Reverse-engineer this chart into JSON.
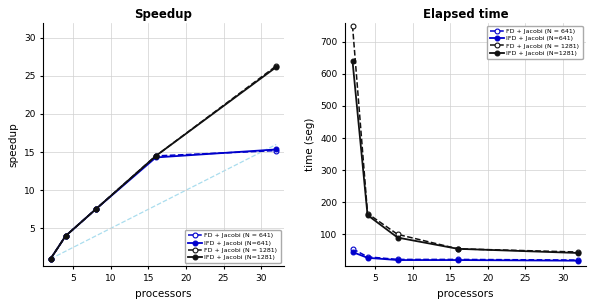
{
  "processors": [
    2,
    4,
    8,
    16,
    32
  ],
  "ideal_x": [
    2,
    4,
    8,
    16,
    32
  ],
  "ideal_y": [
    1,
    2,
    4,
    8,
    16
  ],
  "speedup": {
    "FD_641": [
      1.0,
      4.0,
      7.5,
      14.5,
      15.2
    ],
    "IFD_641": [
      1.0,
      4.0,
      7.5,
      14.3,
      15.35
    ],
    "FD_1281": [
      1.0,
      4.0,
      7.5,
      14.5,
      26.3
    ],
    "IFD_1281": [
      1.0,
      4.0,
      7.5,
      14.5,
      26.15
    ]
  },
  "elapsed": {
    "FD_641": [
      55,
      30,
      22,
      22,
      20
    ],
    "IFD_641": [
      45,
      27,
      20,
      20,
      18
    ],
    "FD_1281": [
      750,
      165,
      100,
      55,
      45
    ],
    "IFD_1281": [
      640,
      160,
      90,
      55,
      42
    ]
  },
  "speedup_ylim": [
    0,
    32
  ],
  "speedup_xlim": [
    1,
    33
  ],
  "speedup_yticks": [
    5,
    10,
    15,
    20,
    25,
    30
  ],
  "speedup_xticks": [
    5,
    10,
    15,
    20,
    25,
    30
  ],
  "elapsed_ylim": [
    0,
    760
  ],
  "elapsed_xlim": [
    1,
    33
  ],
  "elapsed_yticks": [
    100,
    200,
    300,
    400,
    500,
    600,
    700
  ],
  "elapsed_xticks": [
    5,
    10,
    15,
    20,
    25,
    30
  ],
  "color_blue": "#0000cc",
  "color_black": "#111111",
  "color_ideal": "#aaddee",
  "title_speedup": "Speedup",
  "title_elapsed": "Elapsed time",
  "xlabel": "processors",
  "ylabel_speedup": "speedup",
  "ylabel_elapsed": "time (seg)",
  "legend_FD_641": "FD + Jacobi (N = 641)",
  "legend_IFD_641": "IFD + Jacobi (N=641)",
  "legend_FD_1281": "FD + Jacobi (N = 1281)",
  "legend_IFD_1281": "IFD + Jacobi (N=1281)"
}
